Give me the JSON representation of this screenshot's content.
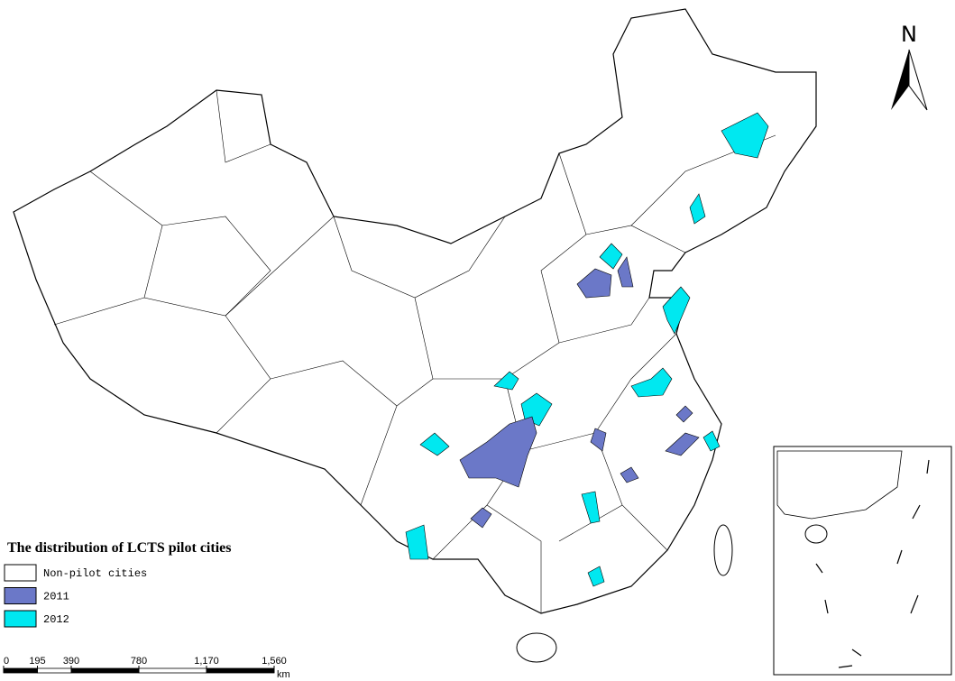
{
  "legend": {
    "title": "The distribution of LCTS pilot cities",
    "items": [
      {
        "label": "Non-pilot cities",
        "color": "#ffffff"
      },
      {
        "label": "2011",
        "color": "#6b78c8"
      },
      {
        "label": "2012",
        "color": "#00e8f0"
      }
    ]
  },
  "north_arrow": {
    "label": "N"
  },
  "scale_bar": {
    "unit": "km",
    "ticks": [
      {
        "value": 0,
        "label": "0"
      },
      {
        "value": 195,
        "label": "195"
      },
      {
        "value": 390,
        "label": "390"
      },
      {
        "value": 780,
        "label": "780"
      },
      {
        "value": 1170,
        "label": "1,170"
      },
      {
        "value": 1560,
        "label": "1,560"
      }
    ]
  }
}
